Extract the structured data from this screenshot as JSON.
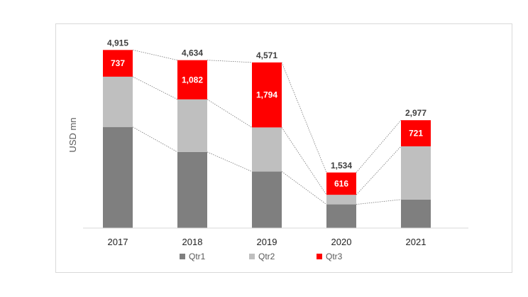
{
  "chart_data": {
    "type": "bar",
    "stacked": true,
    "categories": [
      "2017",
      "2018",
      "2019",
      "2020",
      "2021"
    ],
    "series": [
      {
        "name": "Qtr1",
        "color": "#7f7f7f",
        "values": [
          2790,
          2100,
          1560,
          655,
          787
        ]
      },
      {
        "name": "Qtr2",
        "color": "#bfbfbf",
        "values": [
          1388,
          1452,
          1217,
          263,
          1469
        ]
      },
      {
        "name": "Qtr3",
        "color": "#ff0000",
        "values": [
          737,
          1082,
          1794,
          616,
          721
        ]
      }
    ],
    "totals": [
      4915,
      4634,
      4571,
      1534,
      2977
    ],
    "total_labels": [
      "4,915",
      "4,634",
      "4,571",
      "1,534",
      "2,977"
    ],
    "segment_labels": [
      "737",
      "1,082",
      "1,794",
      "616",
      "721"
    ],
    "ylabel": "USD mn",
    "ylim": [
      0,
      5000
    ],
    "grid": false,
    "series_lines": true,
    "legend_position": "bottom"
  }
}
